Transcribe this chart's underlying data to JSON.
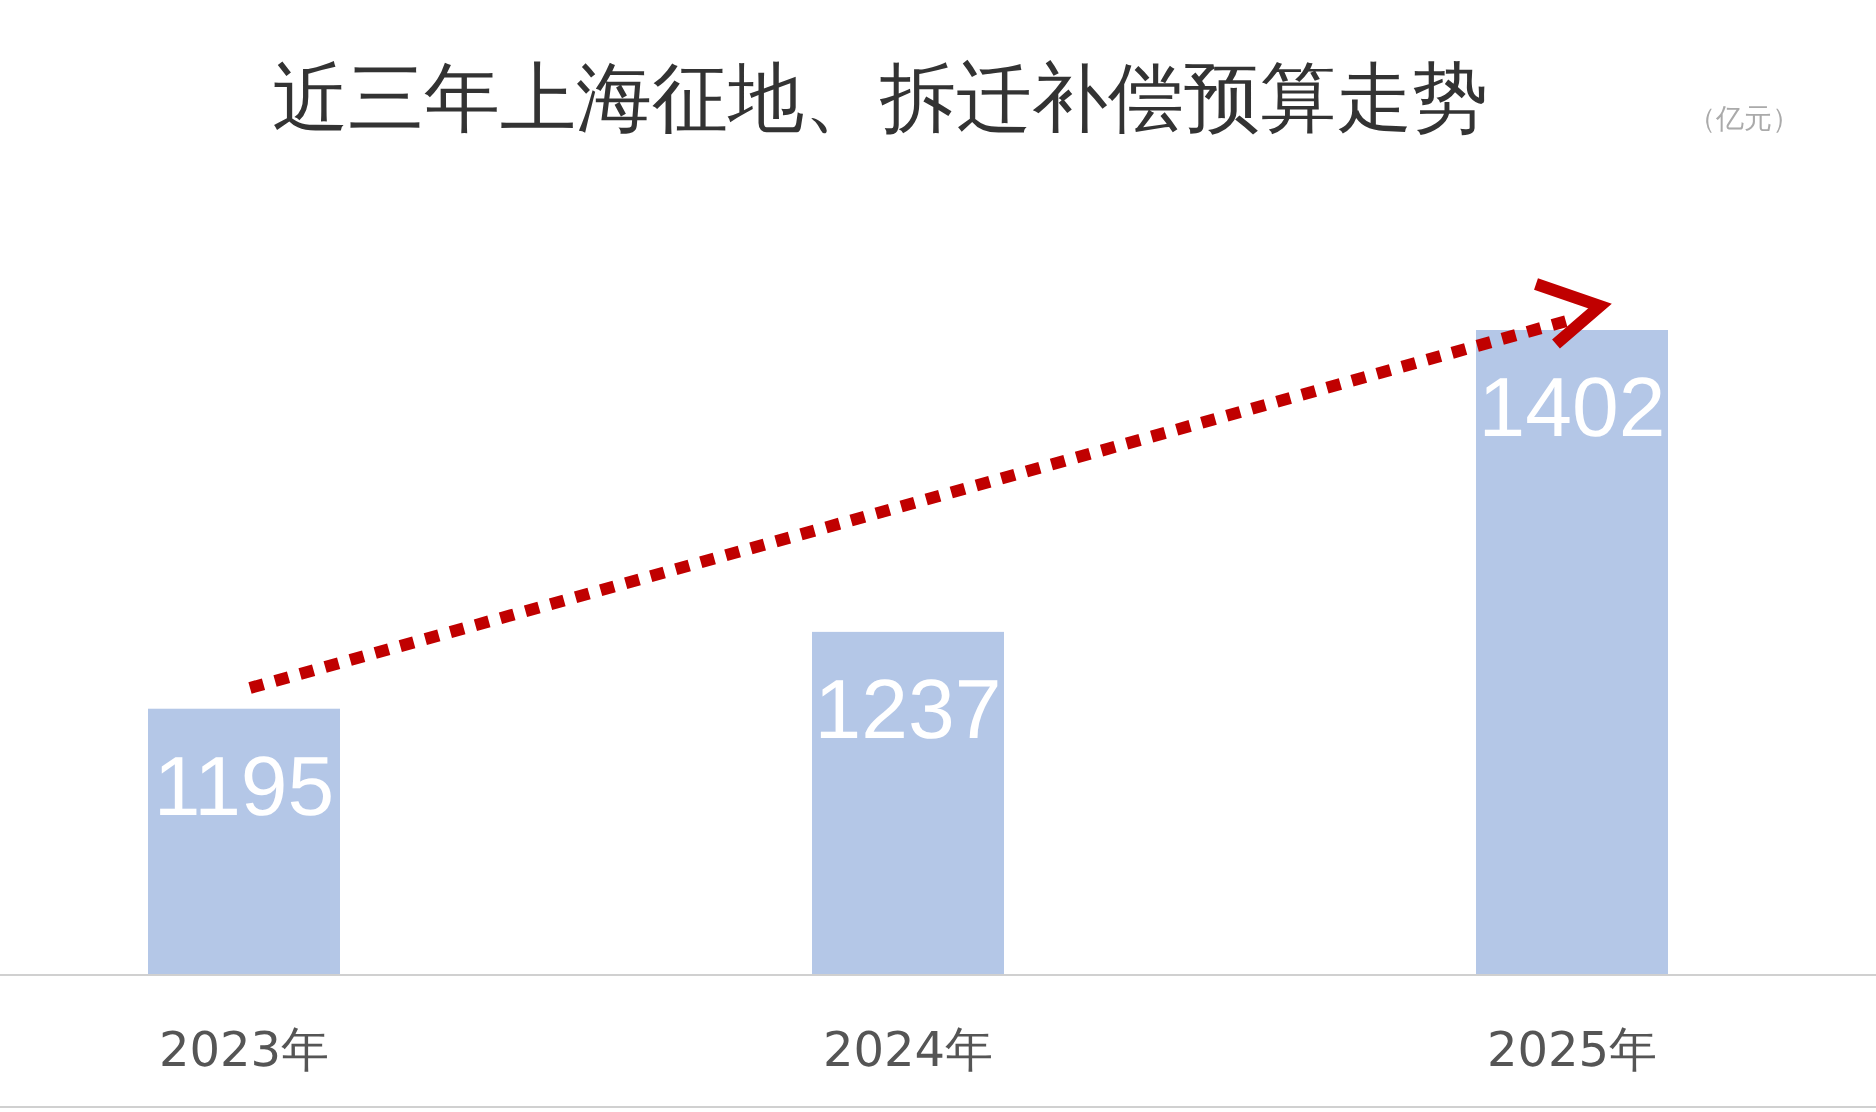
{
  "chart_data": {
    "type": "bar",
    "title": "近三年上海征地、拆迁补偿预算走势",
    "subtitle": "（亿元）",
    "categories": [
      "2023年",
      "2024年",
      "2025年"
    ],
    "values": [
      1195,
      1237,
      1402
    ],
    "color": "#b4c7e7",
    "ylim": [
      1050,
      1402
    ],
    "data_labels": true
  }
}
